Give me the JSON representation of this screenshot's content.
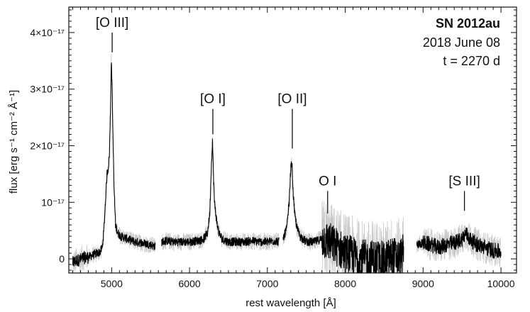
{
  "chart_data": {
    "type": "line",
    "title": "SN 2012au",
    "subtitle": "2018 June 08",
    "phase": "t = 2270 d",
    "xlabel": "rest wavelength [Å]",
    "ylabel": "flux [erg s⁻¹ cm⁻² Å⁻¹]",
    "xlim": [
      4450,
      10200
    ],
    "ylim": [
      -2.5e-18,
      4.45e-17
    ],
    "xticks": [
      5000,
      6000,
      7000,
      8000,
      9000,
      10000
    ],
    "xtick_labels": [
      "5000",
      "6000",
      "7000",
      "8000",
      "9000",
      "10000"
    ],
    "yticks": [
      0,
      1e-17,
      2e-17,
      3e-17,
      4e-17
    ],
    "ytick_labels": [
      "0",
      "10⁻¹⁷",
      "2×10⁻¹⁷",
      "3×10⁻¹⁷",
      "4×10⁻¹⁷"
    ],
    "grid": false,
    "colors": {
      "spectrum": "#000000",
      "raw": "#c8c8c8",
      "axes": "#111111"
    },
    "series": [
      {
        "style": "smoothed-black",
        "segments": [
          [
            [
              4500,
              -7e-19
            ],
            [
              4550,
              -3e-19
            ],
            [
              4600,
              -1e-19
            ],
            [
              4650,
              2e-19
            ],
            [
              4700,
              3e-19
            ],
            [
              4750,
              6e-19
            ],
            [
              4800,
              9e-19
            ],
            [
              4850,
              1.2e-18
            ],
            [
              4880,
              2e-18
            ],
            [
              4900,
              5e-18
            ],
            [
              4920,
              1e-17
            ],
            [
              4940,
              1.5e-17
            ],
            [
              4955,
              1.6e-17
            ],
            [
              4970,
              1.8e-17
            ],
            [
              4985,
              2.6e-17
            ],
            [
              4995,
              3.5e-17
            ],
            [
              5005,
              3.1e-17
            ],
            [
              5015,
              2.3e-17
            ],
            [
              5030,
              1.3e-17
            ],
            [
              5050,
              6e-18
            ],
            [
              5080,
              4.5e-18
            ],
            [
              5120,
              4e-18
            ],
            [
              5200,
              3.5e-18
            ],
            [
              5300,
              3e-18
            ],
            [
              5400,
              2.8e-18
            ],
            [
              5500,
              2.5e-18
            ],
            [
              5560,
              2.2e-18
            ]
          ],
          [
            [
              5640,
              3e-18
            ],
            [
              5700,
              3.2e-18
            ],
            [
              5800,
              3e-18
            ],
            [
              5900,
              3e-18
            ],
            [
              6000,
              3e-18
            ],
            [
              6100,
              3.2e-18
            ],
            [
              6180,
              3.5e-18
            ],
            [
              6230,
              4.5e-18
            ],
            [
              6260,
              8e-18
            ],
            [
              6280,
              1.6e-17
            ],
            [
              6295,
              2.1e-17
            ],
            [
              6305,
              1.6e-17
            ],
            [
              6320,
              1e-17
            ],
            [
              6350,
              6.5e-18
            ],
            [
              6380,
              4.5e-18
            ],
            [
              6420,
              3.5e-18
            ],
            [
              6500,
              3e-18
            ],
            [
              6600,
              3e-18
            ],
            [
              6700,
              3e-18
            ],
            [
              6800,
              3.2e-18
            ],
            [
              6900,
              3e-18
            ],
            [
              7000,
              3e-18
            ],
            [
              7100,
              3.2e-18
            ],
            [
              7150,
              3e-18
            ]
          ],
          [
            [
              7200,
              3.5e-18
            ],
            [
              7250,
              5.5e-18
            ],
            [
              7280,
              1e-17
            ],
            [
              7300,
              1.6e-17
            ],
            [
              7315,
              1.7e-17
            ],
            [
              7330,
              1.2e-17
            ],
            [
              7350,
              8e-18
            ],
            [
              7380,
              5.5e-18
            ],
            [
              7420,
              4e-18
            ],
            [
              7500,
              3e-18
            ],
            [
              7600,
              3e-18
            ],
            [
              7700,
              3.5e-18
            ],
            [
              7800,
              3e-18
            ],
            [
              7900,
              2e-18
            ],
            [
              8000,
              1e-18
            ],
            [
              8100,
              5e-19
            ],
            [
              8200,
              0.0
            ],
            [
              8300,
              -2e-19
            ],
            [
              8400,
              0.0
            ],
            [
              8500,
              -5e-19
            ],
            [
              8600,
              5e-19
            ],
            [
              8700,
              0.0
            ],
            [
              8750,
              1e-18
            ]
          ],
          [
            [
              8920,
              2.5e-18
            ],
            [
              9000,
              2.8e-18
            ],
            [
              9100,
              2.5e-18
            ],
            [
              9200,
              2e-18
            ],
            [
              9300,
              2.5e-18
            ],
            [
              9400,
              2.8e-18
            ],
            [
              9500,
              3.5e-18
            ],
            [
              9550,
              4.5e-18
            ],
            [
              9600,
              3.5e-18
            ],
            [
              9700,
              2.5e-18
            ],
            [
              9800,
              2e-18
            ],
            [
              9900,
              1.5e-18
            ],
            [
              10000,
              1.2e-18
            ]
          ]
        ]
      }
    ],
    "annotations": [
      {
        "label": "[O III]",
        "x": 5007,
        "tick_top": 4e-17,
        "tick_bottom": 3.65e-17
      },
      {
        "label": "[O I]",
        "x": 6300,
        "tick_top": 2.65e-17,
        "tick_bottom": 2.2e-17
      },
      {
        "label": "[O II]",
        "x": 7320,
        "tick_top": 2.65e-17,
        "tick_bottom": 1.95e-17
      },
      {
        "label": "O I",
        "x": 7774,
        "tick_top": 1.2e-17,
        "tick_bottom": 8e-18
      },
      {
        "label": "[S III]",
        "x": 9531,
        "tick_top": 1.2e-17,
        "tick_bottom": 8.5e-18
      }
    ]
  }
}
